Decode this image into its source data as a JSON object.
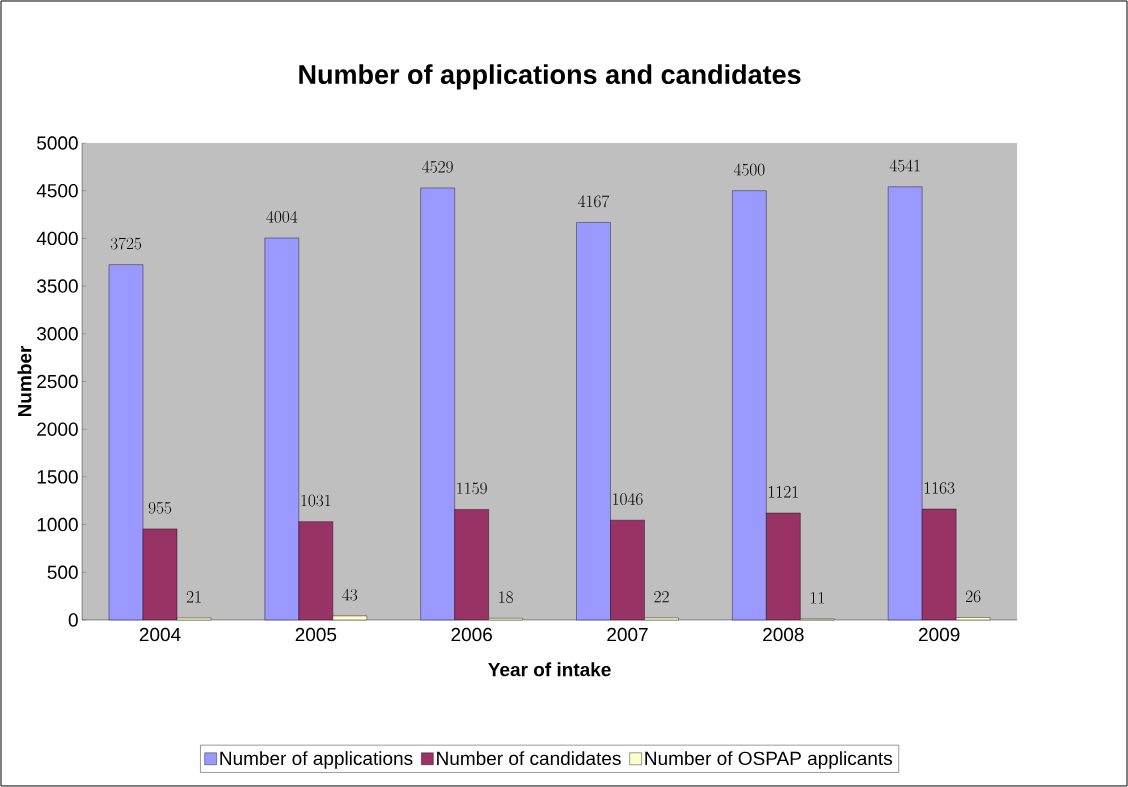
{
  "chart_data": {
    "type": "bar",
    "title": "Number of applications and candidates",
    "xlabel": "Year of intake",
    "ylabel": "Number",
    "categories": [
      "2004",
      "2005",
      "2006",
      "2007",
      "2008",
      "2009"
    ],
    "series": [
      {
        "name": "Number of applications",
        "color": "#9999ff",
        "values": [
          3725,
          4004,
          4529,
          4167,
          4500,
          4541
        ]
      },
      {
        "name": "Number of candidates",
        "color": "#993366",
        "values": [
          955,
          1031,
          1159,
          1046,
          1121,
          1163
        ]
      },
      {
        "name": "Number of OSPAP applicants",
        "color": "#ffffcc",
        "values": [
          21,
          43,
          18,
          22,
          11,
          26
        ]
      }
    ],
    "ylim": [
      0,
      5000
    ],
    "yticks": [
      0,
      500,
      1000,
      1500,
      2000,
      2500,
      3000,
      3500,
      4000,
      4500,
      5000
    ],
    "grid": false,
    "legend": "bottom",
    "data_labels": true
  }
}
